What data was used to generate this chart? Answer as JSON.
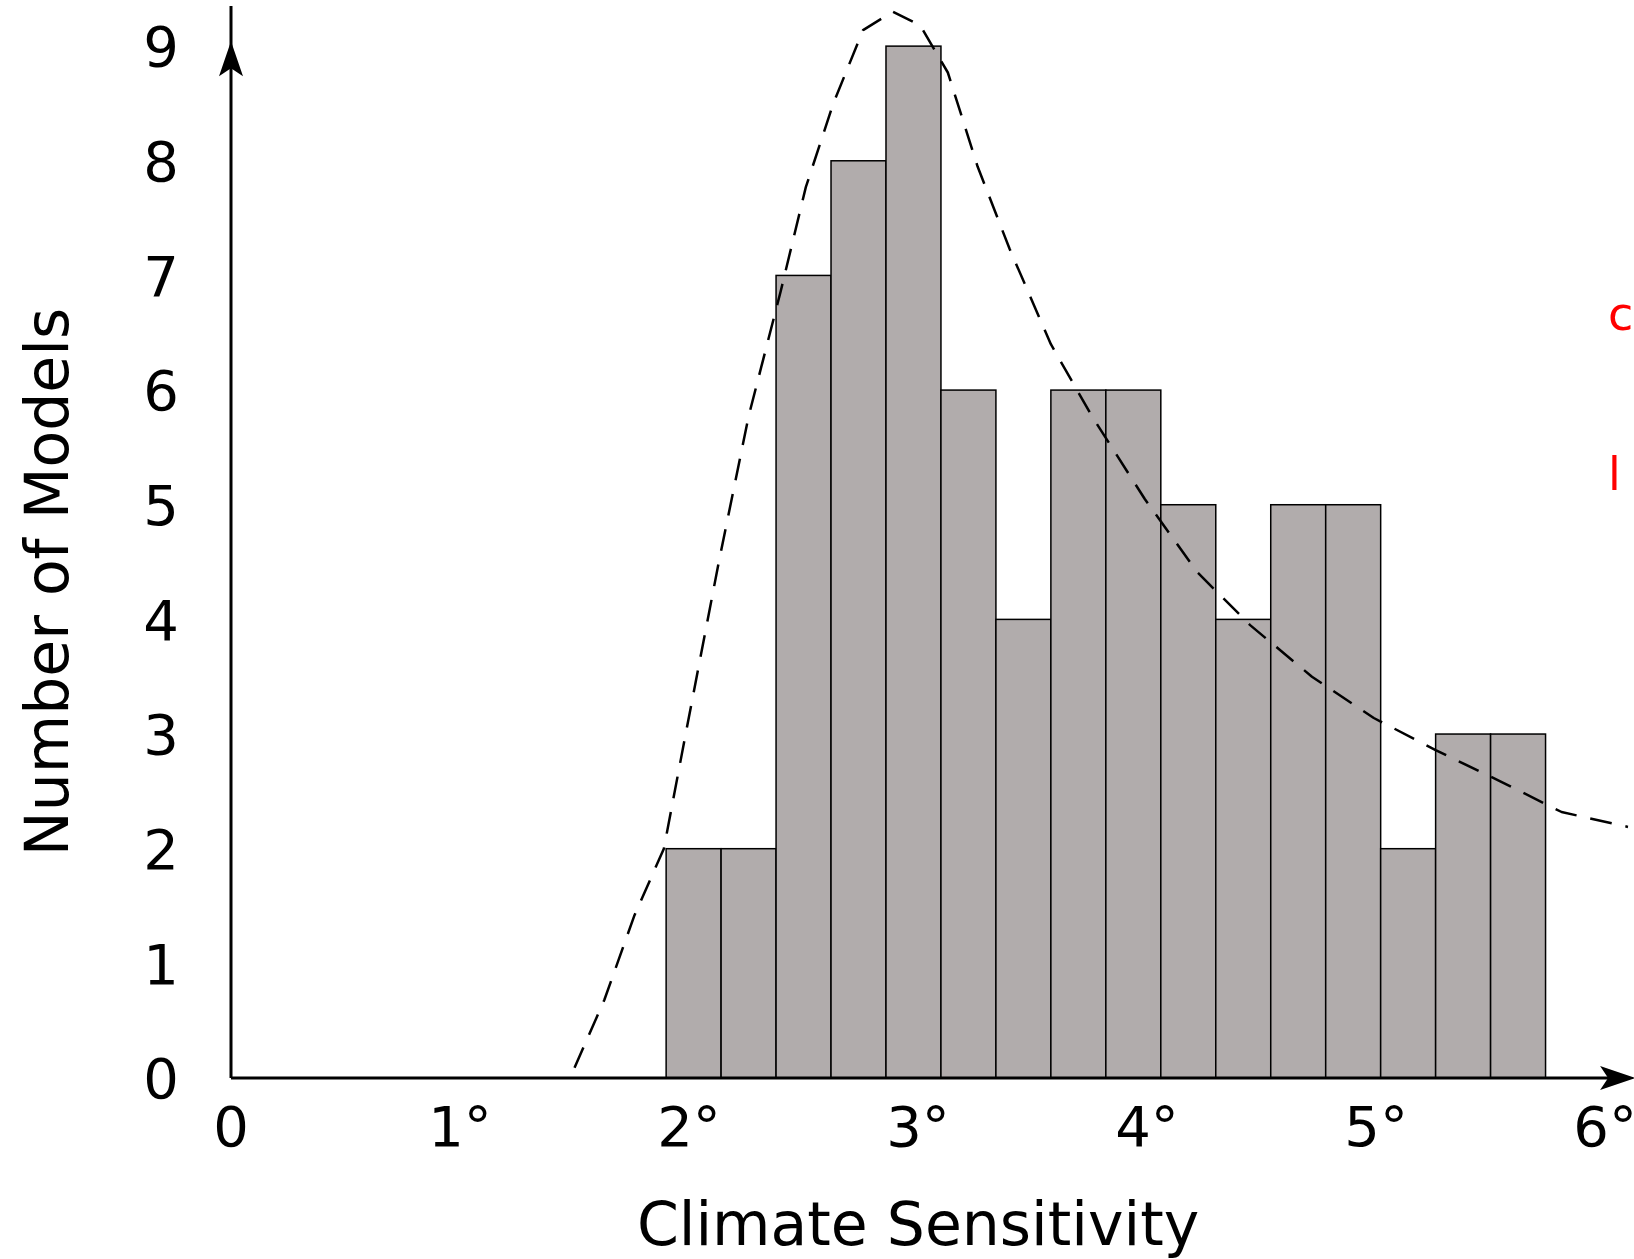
{
  "chart_data": {
    "type": "histogram",
    "xlabel": "Climate Sensitivity",
    "ylabel": "Number of Models",
    "bins": [
      1.9,
      2.14,
      2.38,
      2.62,
      2.86,
      3.1,
      3.34,
      3.58,
      3.82,
      4.06,
      4.3,
      4.54,
      4.78,
      5.02,
      5.26,
      5.5,
      5.74
    ],
    "values": [
      2,
      2,
      7,
      8,
      9,
      6,
      4,
      6,
      6,
      5,
      4,
      5,
      5,
      2,
      3,
      3
    ],
    "color": "#b1acac",
    "series": [
      {
        "type": "line",
        "color": "#000000",
        "line_style": "dashed",
        "x": [
          1.5,
          1.63,
          1.76,
          1.89,
          1.99,
          2.13,
          2.26,
          2.4,
          2.51,
          2.63,
          2.76,
          2.89,
          3.01,
          3.13,
          3.26,
          3.4,
          3.58,
          3.76,
          3.99,
          4.22,
          4.45,
          4.72,
          4.99,
          5.26,
          5.54,
          5.81,
          6.1
        ],
        "values": [
          0.09,
          0.68,
          1.41,
          2.0,
          3.05,
          4.5,
          5.77,
          6.86,
          7.77,
          8.5,
          9.14,
          9.3,
          9.18,
          8.77,
          7.95,
          7.23,
          6.4,
          5.77,
          5.05,
          4.41,
          3.95,
          3.5,
          3.14,
          2.86,
          2.59,
          2.32,
          2.19
        ]
      }
    ],
    "xlim": [
      0,
      6.1
    ],
    "ylim": [
      0,
      9.35
    ],
    "xticks": [
      0,
      {
        "value": 1,
        "label": "1°"
      },
      {
        "value": 2,
        "label": "2°"
      },
      {
        "value": 3,
        "label": "3°"
      },
      {
        "value": 4,
        "label": "4°"
      },
      {
        "value": 5,
        "label": "5°"
      },
      {
        "value": 6,
        "label": "6°"
      }
    ],
    "yticks": [
      0,
      1,
      2,
      3,
      4,
      5,
      6,
      7,
      8,
      9
    ],
    "grid": false,
    "annotations": [
      "c",
      "l"
    ]
  }
}
